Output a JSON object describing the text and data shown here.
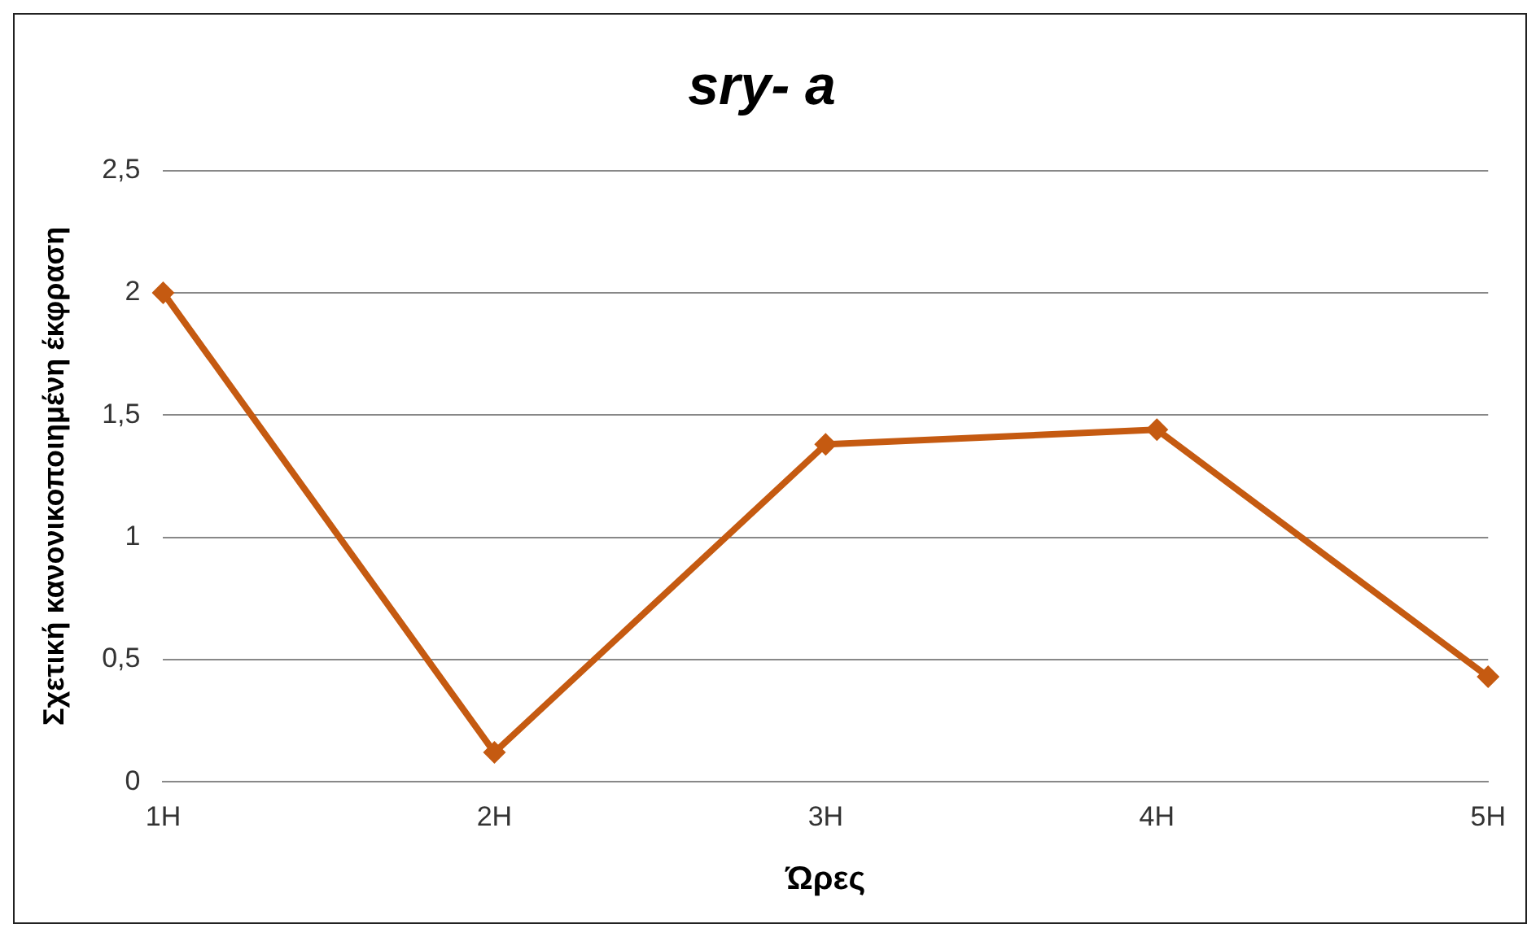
{
  "chart_data": {
    "type": "line",
    "title": "sry- a",
    "xlabel": "Ώρες",
    "ylabel": "Σχετική κανονικοποιημένη έκφραση",
    "categories": [
      "1H",
      "2H",
      "3H",
      "4H",
      "5H"
    ],
    "series": [
      {
        "color": "#c55a11",
        "values": [
          2.0,
          0.12,
          1.38,
          1.44,
          0.43
        ]
      }
    ],
    "ylim": [
      0,
      2.5
    ],
    "yticks": [
      0,
      {
        "value": 0.5,
        "label": "0,5"
      },
      1,
      {
        "value": 1.5,
        "label": "1,5"
      },
      2,
      {
        "value": 2.5,
        "label": "2,5"
      }
    ],
    "grid": "y",
    "marker": "diamond",
    "line_style": "solid"
  }
}
